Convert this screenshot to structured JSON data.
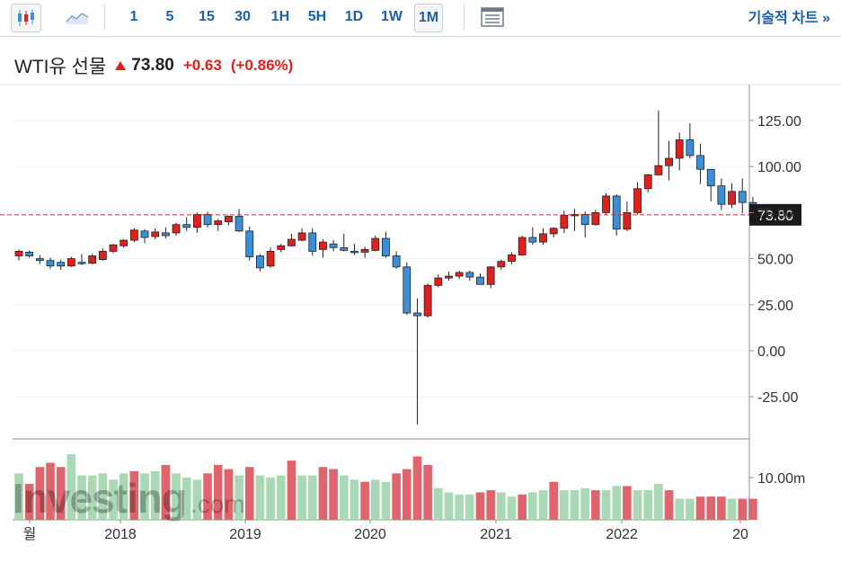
{
  "toolbar": {
    "candles_icon": "candlestick-icon",
    "area_icon": "area-chart-icon",
    "intervals": [
      "1",
      "5",
      "15",
      "30",
      "1H",
      "5H",
      "1D",
      "1W",
      "1M"
    ],
    "active_interval": "1M",
    "layout_icon": "layout-icon",
    "tech_chart_label": "기술적 차트 »"
  },
  "header": {
    "instrument": "WTI유 선물",
    "price": "73.80",
    "change": "+0.63",
    "change_pct": "(+0.86%)"
  },
  "colors": {
    "up": "#e0211b",
    "down": "#3a8fd6",
    "vol_up": "#e0646b",
    "vol_down": "#a9d9b4",
    "last_price_line": "#c0392b"
  },
  "watermark": {
    "text_main": "Investing",
    "text_suffix": ".com"
  },
  "chart_data": {
    "type": "candlestick",
    "interval": "1M",
    "y_ticks": [
      "125.00",
      "100.00",
      "75.00",
      "50.00",
      "25.00",
      "0.00",
      "-25.00"
    ],
    "ylim": [
      -40,
      131
    ],
    "volume_tick": "10.00m",
    "volume_ylim": [
      0,
      16
    ],
    "x_tick_labels": [
      "월",
      "2018",
      "2019",
      "2020",
      "2021",
      "2022",
      "20"
    ],
    "last_price": "73.80",
    "candles": [
      {
        "o": 51.5,
        "h": 55.0,
        "l": 49.0,
        "c": 54.0
      },
      {
        "o": 53.5,
        "h": 54.5,
        "l": 50.5,
        "c": 51.5
      },
      {
        "o": 50.0,
        "h": 52.0,
        "l": 47.0,
        "c": 49.0
      },
      {
        "o": 49.0,
        "h": 50.5,
        "l": 44.5,
        "c": 46.0
      },
      {
        "o": 48.0,
        "h": 49.5,
        "l": 44.0,
        "c": 46.0
      },
      {
        "o": 46.0,
        "h": 51.0,
        "l": 45.5,
        "c": 50.0
      },
      {
        "o": 48.0,
        "h": 52.5,
        "l": 46.5,
        "c": 47.5
      },
      {
        "o": 47.5,
        "h": 52.5,
        "l": 47.0,
        "c": 51.5
      },
      {
        "o": 49.5,
        "h": 55.5,
        "l": 49.0,
        "c": 54.0
      },
      {
        "o": 54.0,
        "h": 58.0,
        "l": 53.0,
        "c": 57.5
      },
      {
        "o": 57.0,
        "h": 60.5,
        "l": 56.0,
        "c": 60.0
      },
      {
        "o": 60.0,
        "h": 66.5,
        "l": 59.0,
        "c": 65.5
      },
      {
        "o": 65.0,
        "h": 66.0,
        "l": 58.5,
        "c": 61.5
      },
      {
        "o": 62.0,
        "h": 66.5,
        "l": 60.5,
        "c": 64.5
      },
      {
        "o": 64.0,
        "h": 67.0,
        "l": 61.0,
        "c": 62.5
      },
      {
        "o": 64.0,
        "h": 69.5,
        "l": 62.5,
        "c": 68.5
      },
      {
        "o": 68.5,
        "h": 72.5,
        "l": 65.0,
        "c": 67.0
      },
      {
        "o": 67.0,
        "h": 75.0,
        "l": 64.0,
        "c": 74.0
      },
      {
        "o": 74.0,
        "h": 75.5,
        "l": 67.0,
        "c": 68.5
      },
      {
        "o": 68.5,
        "h": 71.5,
        "l": 65.0,
        "c": 70.5
      },
      {
        "o": 70.0,
        "h": 73.5,
        "l": 68.0,
        "c": 73.0
      },
      {
        "o": 73.0,
        "h": 77.0,
        "l": 64.5,
        "c": 65.0
      },
      {
        "o": 65.0,
        "h": 67.5,
        "l": 49.0,
        "c": 51.0
      },
      {
        "o": 51.5,
        "h": 52.5,
        "l": 43.0,
        "c": 45.0
      },
      {
        "o": 46.0,
        "h": 56.0,
        "l": 45.0,
        "c": 54.0
      },
      {
        "o": 55.0,
        "h": 58.0,
        "l": 53.5,
        "c": 57.0
      },
      {
        "o": 57.0,
        "h": 63.5,
        "l": 56.5,
        "c": 60.5
      },
      {
        "o": 60.0,
        "h": 66.5,
        "l": 59.5,
        "c": 64.0
      },
      {
        "o": 64.0,
        "h": 66.5,
        "l": 51.5,
        "c": 54.0
      },
      {
        "o": 55.0,
        "h": 60.5,
        "l": 50.5,
        "c": 59.0
      },
      {
        "o": 58.0,
        "h": 60.0,
        "l": 54.0,
        "c": 56.0
      },
      {
        "o": 56.0,
        "h": 63.5,
        "l": 54.0,
        "c": 54.5
      },
      {
        "o": 54.0,
        "h": 58.0,
        "l": 52.0,
        "c": 53.5
      },
      {
        "o": 53.5,
        "h": 56.5,
        "l": 50.5,
        "c": 55.0
      },
      {
        "o": 54.5,
        "h": 62.5,
        "l": 54.0,
        "c": 61.0
      },
      {
        "o": 61.0,
        "h": 64.5,
        "l": 50.5,
        "c": 51.5
      },
      {
        "o": 51.5,
        "h": 54.0,
        "l": 44.5,
        "c": 45.5
      },
      {
        "o": 45.5,
        "h": 48.0,
        "l": 19.5,
        "c": 20.5
      },
      {
        "o": 20.5,
        "h": 28.5,
        "l": -40.0,
        "c": 19.0
      },
      {
        "o": 19.0,
        "h": 36.5,
        "l": 18.0,
        "c": 35.5
      },
      {
        "o": 35.5,
        "h": 41.5,
        "l": 34.5,
        "c": 39.5
      },
      {
        "o": 39.5,
        "h": 43.0,
        "l": 38.0,
        "c": 40.5
      },
      {
        "o": 40.5,
        "h": 43.5,
        "l": 39.0,
        "c": 42.5
      },
      {
        "o": 42.5,
        "h": 43.5,
        "l": 38.0,
        "c": 40.0
      },
      {
        "o": 40.0,
        "h": 42.0,
        "l": 36.5,
        "c": 36.0
      },
      {
        "o": 36.0,
        "h": 46.0,
        "l": 34.0,
        "c": 45.5
      },
      {
        "o": 45.5,
        "h": 49.5,
        "l": 44.0,
        "c": 48.5
      },
      {
        "o": 48.5,
        "h": 53.5,
        "l": 47.0,
        "c": 52.0
      },
      {
        "o": 52.0,
        "h": 62.5,
        "l": 51.5,
        "c": 61.5
      },
      {
        "o": 61.5,
        "h": 67.0,
        "l": 57.5,
        "c": 59.0
      },
      {
        "o": 59.0,
        "h": 66.5,
        "l": 57.5,
        "c": 63.5
      },
      {
        "o": 63.5,
        "h": 67.0,
        "l": 61.5,
        "c": 66.5
      },
      {
        "o": 66.5,
        "h": 76.0,
        "l": 64.0,
        "c": 73.5
      },
      {
        "o": 73.5,
        "h": 77.0,
        "l": 65.0,
        "c": 74.0
      },
      {
        "o": 74.0,
        "h": 75.5,
        "l": 61.5,
        "c": 68.5
      },
      {
        "o": 68.5,
        "h": 76.5,
        "l": 68.0,
        "c": 75.0
      },
      {
        "o": 75.0,
        "h": 85.5,
        "l": 74.0,
        "c": 84.0
      },
      {
        "o": 84.0,
        "h": 85.0,
        "l": 62.5,
        "c": 66.0
      },
      {
        "o": 66.0,
        "h": 81.0,
        "l": 65.0,
        "c": 75.0
      },
      {
        "o": 75.0,
        "h": 91.5,
        "l": 74.0,
        "c": 88.0
      },
      {
        "o": 88.0,
        "h": 96.0,
        "l": 86.0,
        "c": 95.5
      },
      {
        "o": 95.5,
        "h": 130.5,
        "l": 95.0,
        "c": 100.5
      },
      {
        "o": 100.5,
        "h": 114.0,
        "l": 92.5,
        "c": 104.5
      },
      {
        "o": 104.5,
        "h": 118.5,
        "l": 98.0,
        "c": 114.5
      },
      {
        "o": 114.5,
        "h": 123.5,
        "l": 104.5,
        "c": 106.0
      },
      {
        "o": 106.0,
        "h": 112.5,
        "l": 90.5,
        "c": 98.5
      },
      {
        "o": 98.5,
        "h": 98.5,
        "l": 81.0,
        "c": 89.5
      },
      {
        "o": 89.5,
        "h": 93.5,
        "l": 76.5,
        "c": 79.5
      },
      {
        "o": 79.5,
        "h": 91.0,
        "l": 77.5,
        "c": 86.5
      },
      {
        "o": 86.5,
        "h": 93.5,
        "l": 74.5,
        "c": 80.5
      },
      {
        "o": 80.5,
        "h": 83.5,
        "l": 70.5,
        "c": 73.8
      }
    ],
    "volumes": [
      {
        "v": 11.0,
        "up": false
      },
      {
        "v": 8.5,
        "up": true
      },
      {
        "v": 12.5,
        "up": true
      },
      {
        "v": 13.5,
        "up": true
      },
      {
        "v": 12.5,
        "up": true
      },
      {
        "v": 15.5,
        "up": false
      },
      {
        "v": 10.5,
        "up": false
      },
      {
        "v": 10.5,
        "up": false
      },
      {
        "v": 11.0,
        "up": false
      },
      {
        "v": 9.5,
        "up": false
      },
      {
        "v": 11.0,
        "up": false
      },
      {
        "v": 11.5,
        "up": true
      },
      {
        "v": 11.0,
        "up": false
      },
      {
        "v": 11.5,
        "up": false
      },
      {
        "v": 13.0,
        "up": true
      },
      {
        "v": 11.0,
        "up": false
      },
      {
        "v": 10.0,
        "up": false
      },
      {
        "v": 9.5,
        "up": false
      },
      {
        "v": 11.0,
        "up": true
      },
      {
        "v": 13.0,
        "up": true
      },
      {
        "v": 12.0,
        "up": true
      },
      {
        "v": 10.5,
        "up": false
      },
      {
        "v": 12.5,
        "up": true
      },
      {
        "v": 10.5,
        "up": false
      },
      {
        "v": 10.0,
        "up": false
      },
      {
        "v": 10.5,
        "up": false
      },
      {
        "v": 14.0,
        "up": true
      },
      {
        "v": 10.5,
        "up": false
      },
      {
        "v": 10.5,
        "up": false
      },
      {
        "v": 12.5,
        "up": true
      },
      {
        "v": 12.0,
        "up": true
      },
      {
        "v": 10.5,
        "up": false
      },
      {
        "v": 9.5,
        "up": false
      },
      {
        "v": 9.0,
        "up": true
      },
      {
        "v": 9.5,
        "up": false
      },
      {
        "v": 9.0,
        "up": false
      },
      {
        "v": 11.0,
        "up": true
      },
      {
        "v": 12.0,
        "up": true
      },
      {
        "v": 15.0,
        "up": true
      },
      {
        "v": 13.0,
        "up": true
      },
      {
        "v": 7.5,
        "up": false
      },
      {
        "v": 6.5,
        "up": false
      },
      {
        "v": 6.0,
        "up": false
      },
      {
        "v": 6.0,
        "up": false
      },
      {
        "v": 6.5,
        "up": true
      },
      {
        "v": 7.0,
        "up": true
      },
      {
        "v": 6.5,
        "up": false
      },
      {
        "v": 5.5,
        "up": false
      },
      {
        "v": 6.0,
        "up": true
      },
      {
        "v": 6.5,
        "up": false
      },
      {
        "v": 7.0,
        "up": false
      },
      {
        "v": 9.0,
        "up": true
      },
      {
        "v": 7.0,
        "up": false
      },
      {
        "v": 7.0,
        "up": false
      },
      {
        "v": 7.5,
        "up": false
      },
      {
        "v": 7.0,
        "up": true
      },
      {
        "v": 7.0,
        "up": false
      },
      {
        "v": 8.0,
        "up": false
      },
      {
        "v": 8.0,
        "up": true
      },
      {
        "v": 7.0,
        "up": false
      },
      {
        "v": 7.0,
        "up": false
      },
      {
        "v": 8.5,
        "up": false
      },
      {
        "v": 7.0,
        "up": true
      },
      {
        "v": 5.0,
        "up": false
      },
      {
        "v": 5.0,
        "up": false
      },
      {
        "v": 5.5,
        "up": true
      },
      {
        "v": 5.5,
        "up": true
      },
      {
        "v": 5.5,
        "up": true
      },
      {
        "v": 5.0,
        "up": false
      },
      {
        "v": 5.0,
        "up": true
      },
      {
        "v": 5.0,
        "up": true
      }
    ]
  }
}
